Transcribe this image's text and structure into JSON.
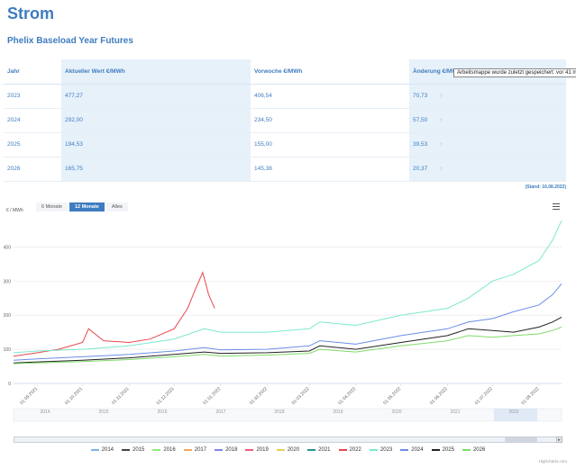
{
  "page": {
    "title": "Strom",
    "subtitle": "Phelix Baseload Year Futures",
    "tooltip": "Arbeitsmappe wurde zuletzt gespeichert: vor 41 m",
    "stand": "(Stand: 16.08.2022)"
  },
  "table": {
    "headers": [
      "Jahr",
      "Aktueller Wert €/MWh",
      "Vorwoche €/MWh",
      "Änderung €/MWh"
    ],
    "rows": [
      {
        "year": "2023",
        "current": "477,27",
        "prev": "406,54",
        "change": "70,73",
        "arrow": "↑"
      },
      {
        "year": "2024",
        "current": "292,00",
        "prev": "234,50",
        "change": "57,50",
        "arrow": "↑"
      },
      {
        "year": "2025",
        "current": "194,53",
        "prev": "155,00",
        "change": "39,53",
        "arrow": "↑"
      },
      {
        "year": "2026",
        "current": "165,75",
        "prev": "145,38",
        "change": "20,37",
        "arrow": "↑"
      }
    ]
  },
  "controls": {
    "unit": "€ / MWh",
    "range_buttons": [
      "6 Monate",
      "12 Monate",
      "Alles"
    ],
    "active_range": "12 Monate",
    "menu_icon": "hamburger-menu-icon"
  },
  "navigator": {
    "years": [
      "2014",
      "2015",
      "2016",
      "2017",
      "2018",
      "2019",
      "2020",
      "2021",
      "2022"
    ],
    "left_button": "◂",
    "right_button": "▸",
    "thumb_label": "|||"
  },
  "credit": "Highcharts.com",
  "chart_data": {
    "type": "line",
    "ylabel": "€ / MWh",
    "ylim": [
      0,
      480
    ],
    "yticks": [
      0,
      100,
      200,
      300,
      400
    ],
    "x_ticks": [
      "01.09.2021",
      "01.10.2021",
      "01.11.2021",
      "01.12.2021",
      "01.01.2022",
      "01.02.2022",
      "01.03.2022",
      "01.04.2022",
      "01.05.2022",
      "01.06.2022",
      "01.07.2022",
      "01.08.2022"
    ],
    "x_range": [
      "2021-08-16",
      "2022-08-16"
    ],
    "legend_position": "bottom",
    "series": [
      {
        "name": "2014",
        "color": "#7cb5ec",
        "x": [],
        "values": []
      },
      {
        "name": "2015",
        "color": "#434348",
        "x": [],
        "values": []
      },
      {
        "name": "2016",
        "color": "#90ed7d",
        "x": [],
        "values": []
      },
      {
        "name": "2017",
        "color": "#f7a35c",
        "x": [],
        "values": []
      },
      {
        "name": "2018",
        "color": "#8085e9",
        "x": [],
        "values": []
      },
      {
        "name": "2019",
        "color": "#f15c80",
        "x": [],
        "values": []
      },
      {
        "name": "2020",
        "color": "#e4d354",
        "x": [],
        "values": []
      },
      {
        "name": "2021",
        "color": "#2b908f",
        "x": [],
        "values": []
      },
      {
        "name": "2022",
        "color": "#e8474b",
        "x": [
          "2021-08-16",
          "2021-09-01",
          "2021-09-15",
          "2021-10-01",
          "2021-10-05",
          "2021-10-15",
          "2021-11-01",
          "2021-11-15",
          "2021-12-01",
          "2021-12-10",
          "2021-12-15",
          "2021-12-20",
          "2021-12-24",
          "2021-12-28"
        ],
        "values": [
          80,
          90,
          100,
          120,
          160,
          125,
          120,
          130,
          160,
          220,
          275,
          325,
          260,
          220
        ]
      },
      {
        "name": "2023",
        "color": "#7de8cf",
        "x": [
          "2021-08-16",
          "2021-09-01",
          "2021-10-01",
          "2021-11-01",
          "2021-12-01",
          "2021-12-21",
          "2022-01-01",
          "2022-02-01",
          "2022-03-01",
          "2022-03-08",
          "2022-04-01",
          "2022-05-01",
          "2022-06-01",
          "2022-06-15",
          "2022-07-01",
          "2022-07-15",
          "2022-08-01",
          "2022-08-10",
          "2022-08-16"
        ],
        "values": [
          90,
          95,
          100,
          110,
          130,
          160,
          150,
          150,
          160,
          180,
          170,
          200,
          220,
          250,
          300,
          320,
          360,
          420,
          477
        ]
      },
      {
        "name": "2024",
        "color": "#6b8fe6",
        "x": [
          "2021-08-16",
          "2021-09-01",
          "2021-10-01",
          "2021-11-01",
          "2021-12-01",
          "2021-12-21",
          "2022-01-01",
          "2022-02-01",
          "2022-03-01",
          "2022-03-08",
          "2022-04-01",
          "2022-05-01",
          "2022-06-01",
          "2022-06-15",
          "2022-07-01",
          "2022-07-15",
          "2022-08-01",
          "2022-08-10",
          "2022-08-16"
        ],
        "values": [
          68,
          72,
          78,
          85,
          95,
          105,
          98,
          100,
          110,
          125,
          115,
          140,
          160,
          180,
          190,
          210,
          230,
          260,
          292
        ]
      },
      {
        "name": "2025",
        "color": "#222222",
        "x": [
          "2021-08-16",
          "2021-09-01",
          "2021-10-01",
          "2021-11-01",
          "2021-12-01",
          "2021-12-21",
          "2022-01-01",
          "2022-02-01",
          "2022-03-01",
          "2022-03-08",
          "2022-04-01",
          "2022-05-01",
          "2022-06-01",
          "2022-06-15",
          "2022-07-01",
          "2022-07-15",
          "2022-08-01",
          "2022-08-10",
          "2022-08-16"
        ],
        "values": [
          60,
          63,
          68,
          75,
          85,
          92,
          88,
          90,
          95,
          110,
          100,
          120,
          140,
          160,
          155,
          150,
          165,
          180,
          194
        ]
      },
      {
        "name": "2026",
        "color": "#7fdc6a",
        "x": [
          "2021-08-16",
          "2021-09-01",
          "2021-10-01",
          "2021-11-01",
          "2021-12-01",
          "2021-12-21",
          "2022-01-01",
          "2022-02-01",
          "2022-03-01",
          "2022-03-08",
          "2022-04-01",
          "2022-05-01",
          "2022-06-01",
          "2022-06-15",
          "2022-07-01",
          "2022-07-15",
          "2022-08-01",
          "2022-08-10",
          "2022-08-16"
        ],
        "values": [
          58,
          60,
          64,
          70,
          78,
          85,
          80,
          83,
          88,
          100,
          92,
          110,
          125,
          140,
          135,
          140,
          145,
          155,
          165
        ]
      }
    ]
  }
}
